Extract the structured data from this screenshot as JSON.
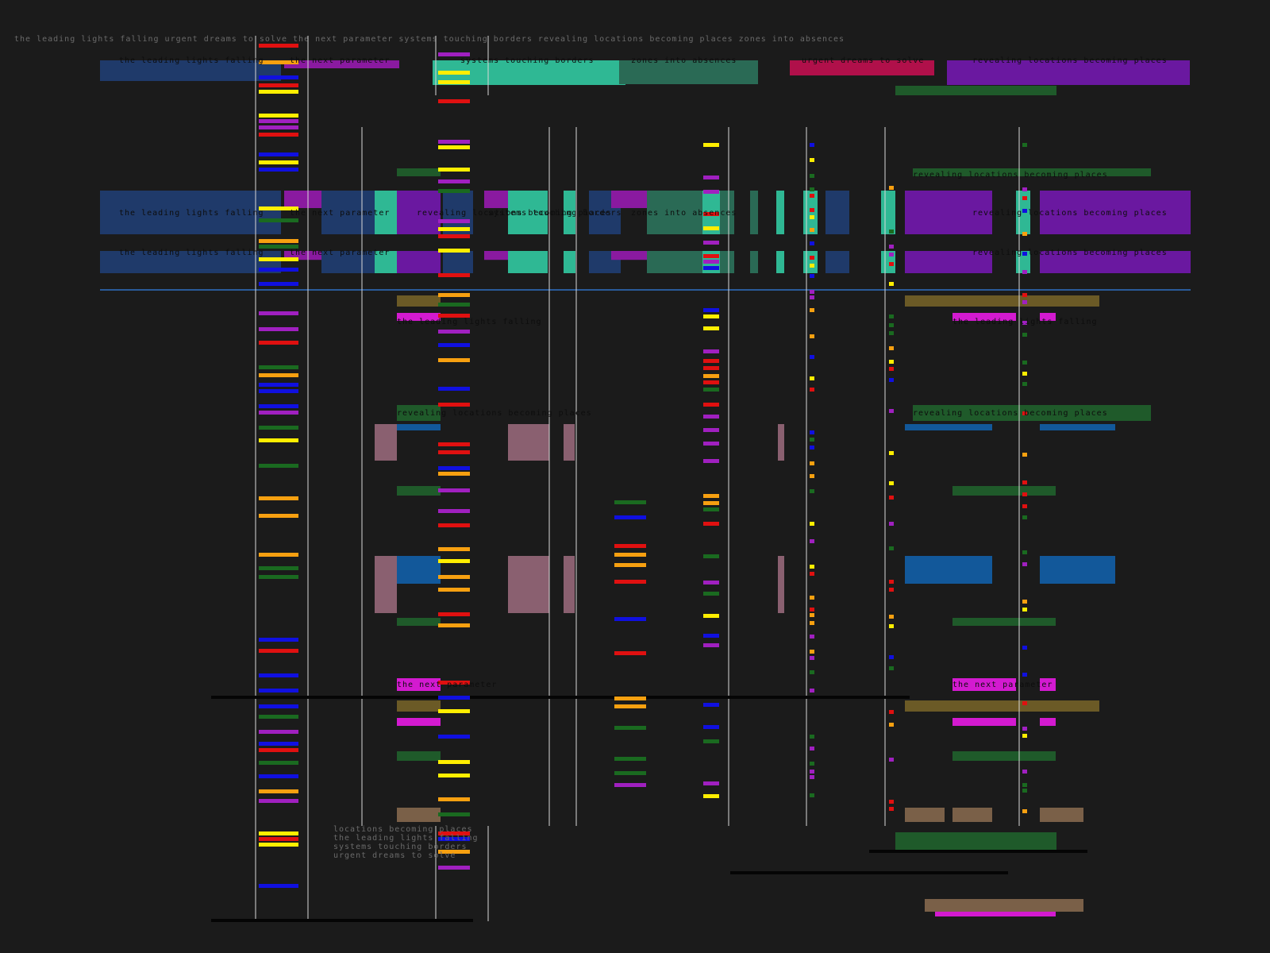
{
  "header": {
    "text": "the leading lights falling urgent dreams to solve the next parameter systems touching borders revealing locations becoming places zones into absences"
  },
  "bands": [
    "the leading lights falling",
    "the next parameter",
    "systems touching borders",
    "zones into absences",
    "urgent dreams to solve",
    "revealing locations becoming places"
  ],
  "text_block": "locations becoming places the leading lights falling systems touching borders urgent dreams to solve"
}
